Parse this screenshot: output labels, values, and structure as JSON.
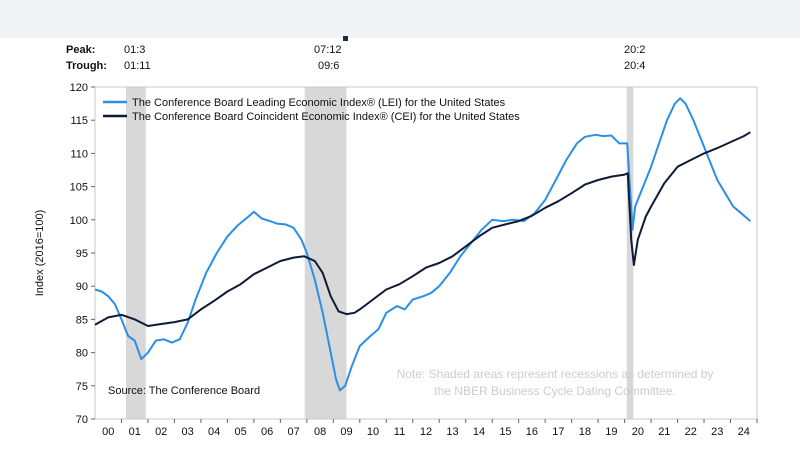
{
  "chart_data": {
    "type": "line",
    "peak_label": "Peak:",
    "trough_label": "Trough:",
    "recessions": [
      {
        "peak": "01:3",
        "trough": "01:11",
        "start": 2001.17,
        "end": 2001.92
      },
      {
        "peak": "07:12",
        "trough": "09:6",
        "start": 2007.92,
        "end": 2009.5
      },
      {
        "peak": "20:2",
        "trough": "20:4",
        "start": 2020.08,
        "end": 2020.33
      }
    ],
    "ylabel": "Index (2016=100)",
    "ylim": [
      70,
      120
    ],
    "yticks": [
      70,
      75,
      80,
      85,
      90,
      95,
      100,
      105,
      110,
      115,
      120
    ],
    "xlim": [
      2000,
      2025
    ],
    "xticks": [
      {
        "v": 2000.5,
        "label": "00"
      },
      {
        "v": 2001.5,
        "label": "01"
      },
      {
        "v": 2002.5,
        "label": "02"
      },
      {
        "v": 2003.5,
        "label": "03"
      },
      {
        "v": 2004.5,
        "label": "04"
      },
      {
        "v": 2005.5,
        "label": "05"
      },
      {
        "v": 2006.5,
        "label": "06"
      },
      {
        "v": 2007.5,
        "label": "07"
      },
      {
        "v": 2008.5,
        "label": "08"
      },
      {
        "v": 2009.5,
        "label": "09"
      },
      {
        "v": 2010.5,
        "label": "10"
      },
      {
        "v": 2011.5,
        "label": "11"
      },
      {
        "v": 2012.5,
        "label": "12"
      },
      {
        "v": 2013.5,
        "label": "13"
      },
      {
        "v": 2014.5,
        "label": "14"
      },
      {
        "v": 2015.5,
        "label": "15"
      },
      {
        "v": 2016.5,
        "label": "16"
      },
      {
        "v": 2017.5,
        "label": "17"
      },
      {
        "v": 2018.5,
        "label": "18"
      },
      {
        "v": 2019.5,
        "label": "19"
      },
      {
        "v": 2020.5,
        "label": "20"
      },
      {
        "v": 2021.5,
        "label": "21"
      },
      {
        "v": 2022.5,
        "label": "22"
      },
      {
        "v": 2023.5,
        "label": "23"
      },
      {
        "v": 2024.5,
        "label": "24"
      }
    ],
    "series": [
      {
        "name": "The Conference Board Leading Economic Index® (LEI) for the United States",
        "color": "#2b8fe6",
        "points": [
          [
            2000.0,
            89.5
          ],
          [
            2000.25,
            89.2
          ],
          [
            2000.5,
            88.5
          ],
          [
            2000.75,
            87.3
          ],
          [
            2001.0,
            85.0
          ],
          [
            2001.25,
            82.5
          ],
          [
            2001.5,
            81.8
          ],
          [
            2001.75,
            79.0
          ],
          [
            2002.0,
            80.0
          ],
          [
            2002.3,
            81.8
          ],
          [
            2002.6,
            82.0
          ],
          [
            2002.9,
            81.5
          ],
          [
            2003.2,
            82.0
          ],
          [
            2003.5,
            84.5
          ],
          [
            2003.8,
            88.0
          ],
          [
            2004.2,
            92.0
          ],
          [
            2004.6,
            95.0
          ],
          [
            2005.0,
            97.5
          ],
          [
            2005.4,
            99.2
          ],
          [
            2005.8,
            100.5
          ],
          [
            2006.0,
            101.2
          ],
          [
            2006.3,
            100.2
          ],
          [
            2006.6,
            99.8
          ],
          [
            2006.9,
            99.4
          ],
          [
            2007.2,
            99.3
          ],
          [
            2007.5,
            98.8
          ],
          [
            2007.8,
            97.0
          ],
          [
            2008.0,
            95.0
          ],
          [
            2008.3,
            91.0
          ],
          [
            2008.6,
            86.0
          ],
          [
            2008.9,
            80.0
          ],
          [
            2009.1,
            76.0
          ],
          [
            2009.25,
            74.3
          ],
          [
            2009.45,
            75.0
          ],
          [
            2009.7,
            78.0
          ],
          [
            2010.0,
            81.0
          ],
          [
            2010.4,
            82.5
          ],
          [
            2010.7,
            83.5
          ],
          [
            2011.0,
            86.0
          ],
          [
            2011.4,
            87.0
          ],
          [
            2011.7,
            86.5
          ],
          [
            2012.0,
            88.0
          ],
          [
            2012.4,
            88.5
          ],
          [
            2012.7,
            89.0
          ],
          [
            2013.0,
            90.0
          ],
          [
            2013.4,
            92.0
          ],
          [
            2013.8,
            94.5
          ],
          [
            2014.2,
            96.5
          ],
          [
            2014.6,
            98.5
          ],
          [
            2015.0,
            100.0
          ],
          [
            2015.4,
            99.8
          ],
          [
            2015.8,
            100.0
          ],
          [
            2016.2,
            99.8
          ],
          [
            2016.6,
            101.0
          ],
          [
            2017.0,
            103.0
          ],
          [
            2017.4,
            106.0
          ],
          [
            2017.8,
            109.0
          ],
          [
            2018.2,
            111.5
          ],
          [
            2018.5,
            112.5
          ],
          [
            2018.9,
            112.8
          ],
          [
            2019.2,
            112.6
          ],
          [
            2019.5,
            112.7
          ],
          [
            2019.8,
            111.5
          ],
          [
            2020.1,
            111.5
          ],
          [
            2020.2,
            105.0
          ],
          [
            2020.3,
            98.5
          ],
          [
            2020.4,
            102.0
          ],
          [
            2020.7,
            105.0
          ],
          [
            2021.0,
            108.0
          ],
          [
            2021.3,
            111.5
          ],
          [
            2021.6,
            115.0
          ],
          [
            2021.9,
            117.5
          ],
          [
            2022.1,
            118.3
          ],
          [
            2022.3,
            117.5
          ],
          [
            2022.6,
            115.0
          ],
          [
            2022.9,
            112.0
          ],
          [
            2023.2,
            109.0
          ],
          [
            2023.5,
            106.0
          ],
          [
            2023.8,
            104.0
          ],
          [
            2024.1,
            102.0
          ],
          [
            2024.4,
            101.0
          ],
          [
            2024.75,
            99.8
          ]
        ]
      },
      {
        "name": "The Conference Board Coincident Economic Index® (CEI) for the United States",
        "color": "#0f1a38",
        "points": [
          [
            2000.0,
            84.2
          ],
          [
            2000.5,
            85.3
          ],
          [
            2001.0,
            85.7
          ],
          [
            2001.5,
            85.0
          ],
          [
            2002.0,
            84.0
          ],
          [
            2002.5,
            84.3
          ],
          [
            2003.0,
            84.6
          ],
          [
            2003.5,
            85.0
          ],
          [
            2004.0,
            86.5
          ],
          [
            2004.5,
            87.8
          ],
          [
            2005.0,
            89.2
          ],
          [
            2005.5,
            90.3
          ],
          [
            2006.0,
            91.8
          ],
          [
            2006.5,
            92.8
          ],
          [
            2007.0,
            93.8
          ],
          [
            2007.5,
            94.3
          ],
          [
            2007.9,
            94.5
          ],
          [
            2008.3,
            93.8
          ],
          [
            2008.6,
            92.0
          ],
          [
            2008.9,
            88.5
          ],
          [
            2009.2,
            86.2
          ],
          [
            2009.5,
            85.8
          ],
          [
            2009.8,
            86.0
          ],
          [
            2010.0,
            86.5
          ],
          [
            2010.5,
            88.0
          ],
          [
            2011.0,
            89.5
          ],
          [
            2011.5,
            90.3
          ],
          [
            2012.0,
            91.5
          ],
          [
            2012.5,
            92.8
          ],
          [
            2013.0,
            93.5
          ],
          [
            2013.5,
            94.5
          ],
          [
            2014.0,
            96.0
          ],
          [
            2014.5,
            97.5
          ],
          [
            2015.0,
            98.8
          ],
          [
            2015.5,
            99.3
          ],
          [
            2016.0,
            99.8
          ],
          [
            2016.5,
            100.6
          ],
          [
            2017.0,
            101.8
          ],
          [
            2017.5,
            102.8
          ],
          [
            2018.0,
            104.0
          ],
          [
            2018.5,
            105.3
          ],
          [
            2019.0,
            106.0
          ],
          [
            2019.5,
            106.5
          ],
          [
            2020.0,
            106.8
          ],
          [
            2020.12,
            107.0
          ],
          [
            2020.25,
            97.0
          ],
          [
            2020.35,
            93.2
          ],
          [
            2020.5,
            97.0
          ],
          [
            2020.8,
            100.5
          ],
          [
            2021.0,
            102.0
          ],
          [
            2021.5,
            105.5
          ],
          [
            2022.0,
            108.0
          ],
          [
            2022.5,
            109.0
          ],
          [
            2023.0,
            110.0
          ],
          [
            2023.5,
            110.8
          ],
          [
            2024.0,
            111.7
          ],
          [
            2024.5,
            112.6
          ],
          [
            2024.75,
            113.2
          ]
        ]
      }
    ],
    "annotations": {
      "note": [
        "Note: Shaded areas represent recessions as determined by",
        "the NBER Business Cycle Dating Committee."
      ],
      "source": "Source: The Conference Board"
    }
  }
}
